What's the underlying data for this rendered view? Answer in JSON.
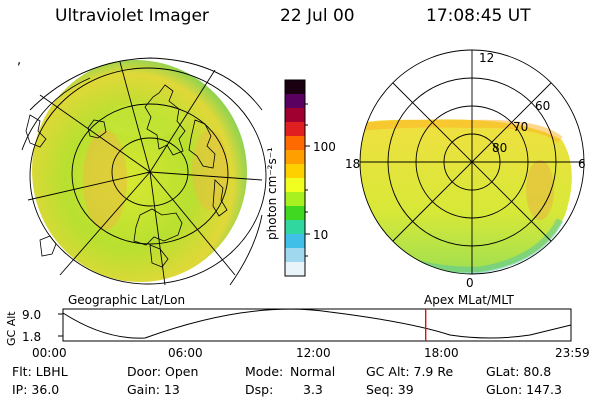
{
  "header": {
    "title": "Ultraviolet Imager",
    "date": "22 Jul 00",
    "time": "17:08:45 UT"
  },
  "colorbar": {
    "label": "photon cm⁻²s⁻¹",
    "ticks": [
      "100",
      "10"
    ],
    "colors": [
      "#1a0010",
      "#5a0060",
      "#a00030",
      "#e02020",
      "#ff6a00",
      "#ffa000",
      "#ffd000",
      "#f0ff20",
      "#a8f020",
      "#40d820",
      "#30d8a0",
      "#40c0e8",
      "#a0d8f0",
      "#e8f4fa"
    ]
  },
  "left_panel": {
    "caption": "Geographic Lat/Lon"
  },
  "right_panel": {
    "caption": "Apex MLat/MLT",
    "mlt_labels": {
      "top": "12",
      "left": "18",
      "right": "6",
      "bottom": "0"
    },
    "lat_labels": [
      "60",
      "70",
      "80"
    ]
  },
  "timeline": {
    "axis_label": "GC Alt",
    "y_ticks": [
      "9.0",
      "1.8"
    ],
    "x_ticks": [
      "00:00",
      "06:00",
      "12:00",
      "18:00",
      "23:59"
    ],
    "current_time_fraction": 0.714
  },
  "status": {
    "filter": "Flt: LBHL",
    "ip": "IP: 36.0",
    "door": "Door: Open",
    "gain": "Gain: 13",
    "mode_label": "Mode:",
    "mode_value": "Normal",
    "dsp_label": "Dsp:",
    "dsp_value": "3.3",
    "gc_alt": "GC Alt: 7.9 Re",
    "seq": "Seq: 39",
    "glat": "GLat: 80.8",
    "glon": "GLon: 147.3"
  },
  "marks": {
    "comma": ","
  }
}
